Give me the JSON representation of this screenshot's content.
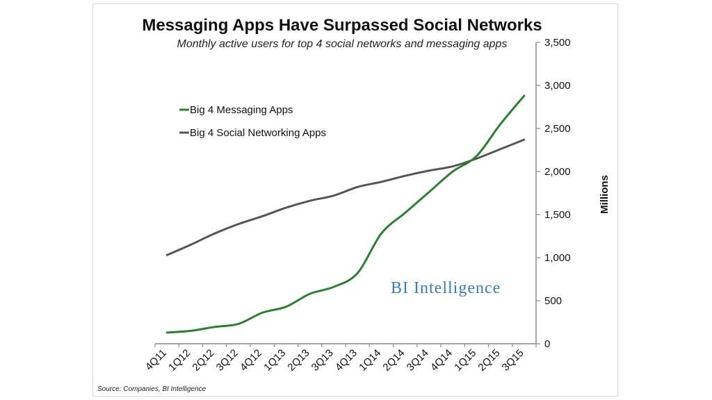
{
  "chart_data": {
    "type": "line",
    "title": "Messaging Apps Have Surpassed Social Networks",
    "subtitle": "Monthly active users for top 4 social networks and messaging apps",
    "ylabel": "Millions",
    "ylim": [
      0,
      3500
    ],
    "yticks": [
      "0",
      "500",
      "1,000",
      "1,500",
      "2,000",
      "2,500",
      "3,000",
      "3,500"
    ],
    "categories": [
      "4Q11",
      "1Q12",
      "2Q12",
      "3Q12",
      "4Q12",
      "1Q13",
      "2Q13",
      "3Q13",
      "4Q13",
      "1Q14",
      "2Q14",
      "3Q14",
      "4Q14",
      "1Q15",
      "2Q15",
      "3Q15"
    ],
    "series": [
      {
        "name": "Big 4 Messaging Apps",
        "color": "#2e7d32",
        "values": [
          130,
          150,
          195,
          230,
          360,
          430,
          580,
          660,
          820,
          1280,
          1520,
          1760,
          2000,
          2180,
          2550,
          2880
        ]
      },
      {
        "name": "Big 4 Social Networking Apps",
        "color": "#555555",
        "values": [
          1030,
          1150,
          1280,
          1390,
          1480,
          1580,
          1660,
          1720,
          1820,
          1880,
          1950,
          2010,
          2060,
          2150,
          2260,
          2370
        ]
      }
    ],
    "legend_position": "top-left",
    "grid": false
  },
  "watermark": "BI Intelligence",
  "watermark_color": "#3b7bbf",
  "source": "Source: Companies, BI Intelligence"
}
